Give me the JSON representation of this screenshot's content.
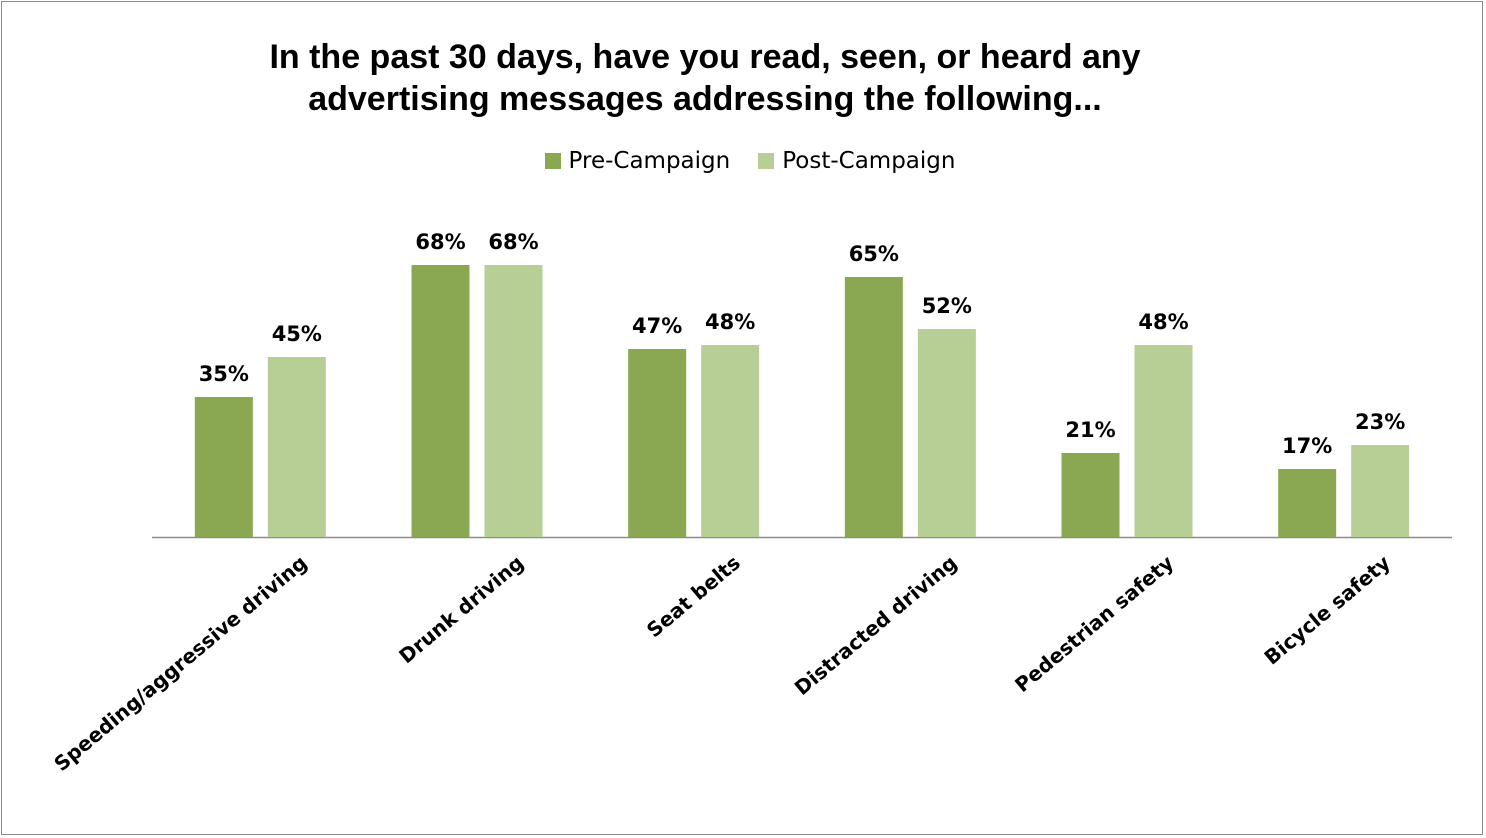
{
  "chart_data": {
    "type": "bar",
    "title_line1": "In the past 30 days, have you read, seen, or heard any",
    "title_line2": "advertising messages addressing the following...",
    "categories": [
      "Speeding/aggressive driving",
      "Drunk driving",
      "Seat belts",
      "Distracted driving",
      "Pedestrian safety",
      "Bicycle safety"
    ],
    "series": [
      {
        "name": "Pre-Campaign",
        "color": "#8aa752",
        "values": [
          35,
          68,
          47,
          65,
          21,
          17
        ],
        "labels": [
          "35%",
          "68%",
          "47%",
          "65%",
          "21%",
          "17%"
        ]
      },
      {
        "name": "Post-Campaign",
        "color": "#b7cf95",
        "values": [
          45,
          68,
          48,
          52,
          48,
          23
        ],
        "labels": [
          "45%",
          "68%",
          "48%",
          "52%",
          "48%",
          "23%"
        ]
      }
    ],
    "ylim": [
      0,
      100
    ],
    "grid": false,
    "legend_position": "top-center"
  }
}
